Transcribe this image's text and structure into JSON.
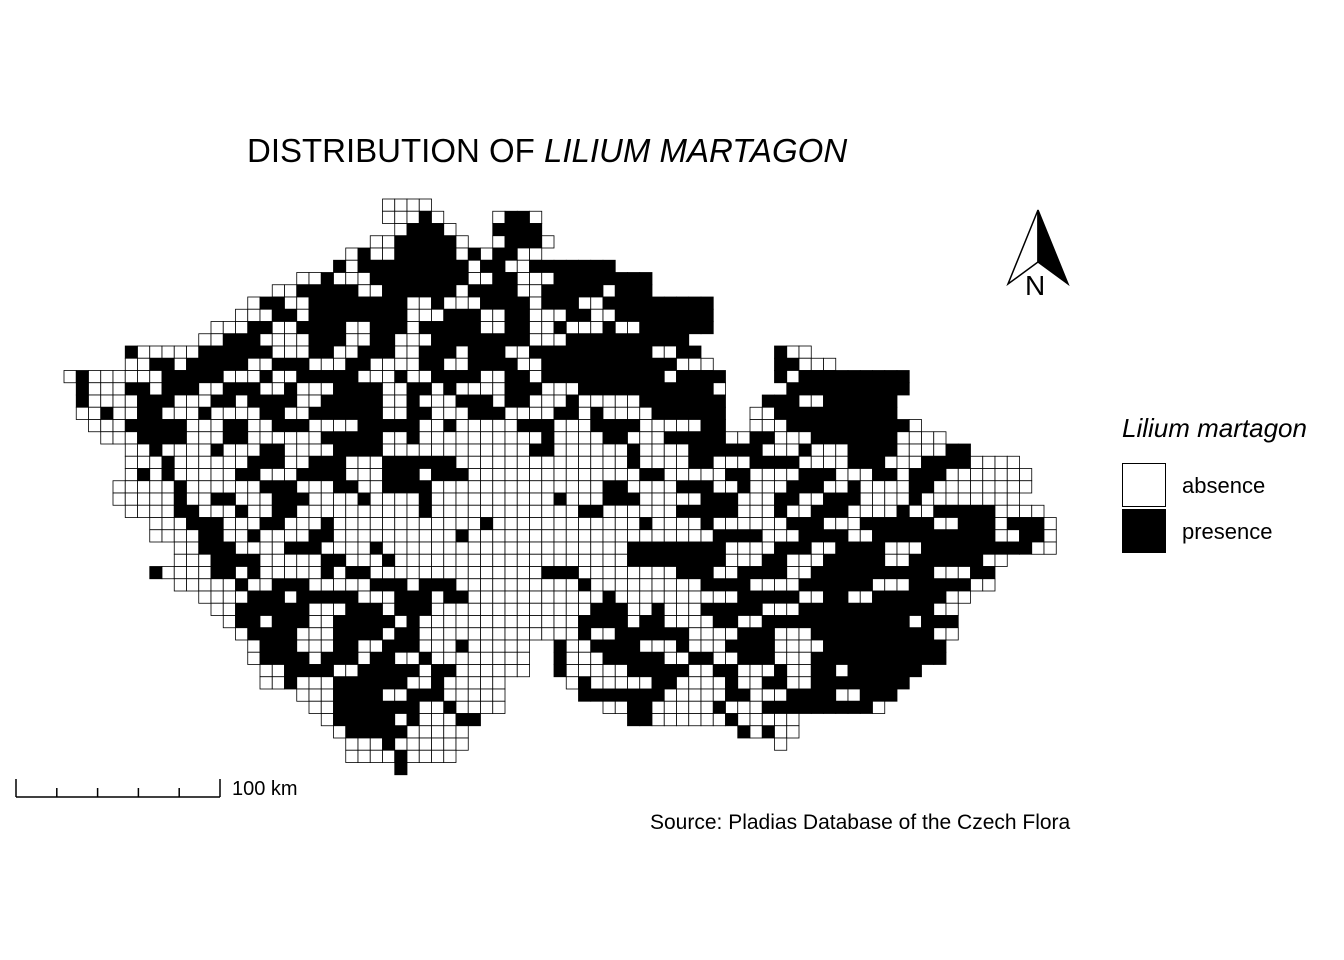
{
  "title": {
    "prefix": "DISTRIBUTION OF ",
    "species": "LILIUM MARTAGON"
  },
  "legend": {
    "title": "Lilium martagon",
    "items": [
      {
        "label": "absence",
        "color": "#ffffff"
      },
      {
        "label": "presence",
        "color": "#000000"
      }
    ]
  },
  "scale_bar": {
    "label": "100 km",
    "divisions": 5
  },
  "north_arrow": {
    "label": "N"
  },
  "source": "Source: Pladias Database of the Czech Flora",
  "colors": {
    "presence": "#000000",
    "absence": "#ffffff",
    "grid": "#000000"
  },
  "grid_encoding": "run-length per row: '.' outside, 'o' absence, 'x' presence",
  "grid_rows": [
    "26. 4o",
    "26. 3o 1x 1o 4. 1o 2x 1o",
    "27. 1o 3x 1o 3. 4x",
    "25. 2o 5x 1o 2. 1o 3x 1o",
    "23. 1o 1x 2o 5x 1o 1x 1o 2x 1o 1o",
    "22. 1x 1o 1x 2x 6x 1o 2x 1o 1o 3x 4x",
    "19. 2o 1x 3o 8x 2o 2x 1o 2o 4x 4x",
    "17. 2o 5x 2o 6x 1o 4x 2o 5x 1o 3x",
    "15. 1o 2x 2o 8x 2o 1x 3o 4x 1o 3x 2o 4x 5x",
    "14. 3o 2x 1o 8x 3o 3x 2o 2x 3o 2x 2o 8x",
    "12. 3o 2x 2o 4x 2o 3x 1o 5x 2o 2x 2o 1x 3o 1x 2o 6x",
    "11. 2o 3x 4o 3x 2o 2x 3o 8x 3o 3x 7x",
    "5. 1x 5o 2x 4x 3o 2x 2o 3x 2o 3x 1o 3x 2o 10x 2o 2x 6. 1x 2o",
    "5. 2o 2x 1o 5x 2o 3x 3o 2x 4o 2x 2o 4x 2o 8x 3x 3o 5. 2x 3o",
    "1o 1x 4o 2o 1x 4x 3o 1x 2o 5x 3o 1x 2o 4x 2o 2x 1o 10x 1o 4x 4. 1x 1o 9x",
    "1. 1x 3o 2x 1o 3x 2o 3x 2o 1x 3o 4x 2o 2x 1o 1x 4o 3x 3o 8x 3x 1o 5. 10x",
    "1. 1x 4o 3x 3o 2x 1o 4x 2o 5x 2o 1x 3o 3x 1o 2x 3o 1x 5o 3x 4x 3. 3x 2o 1x 5x",
    "1. 2o 1x 2o 2x 3o 1x 4o 2x 2o 6x 2o 2x 3o 3x 4o 2x 1o 1x 4o 6x 2. 2o 10x",
    "2. 3o 5x 3o 2x 2o 3x 4o 5x 2o 1x 5o 3x 3o 4x 5o 2x 2. 3o 10x 1o",
    "3. 3o 4x 3o 2x 6o 5x 2o 1x 10o 1x 4o 2x 3o 5x 2o 2x 3o 7x 1o 3o",
    "5. 2o 1x 4o 1x 3o 2x 4o 4x 12o 2x 6o 1x 4o 6x 3o 1x 3o 4x 4o 2x",
    "5. 3o 1x 6o 3x 2o 3x 3o 6x 14o 1x 4o 2x 3o 4x 4o 3x 3o 4x 4o",
    "5. 1o 1x 1o 1x 5o 2x 3o 4x 3o 3x 1o 3x 14o 2x 5o 2x 4o 3x 3o 2x 1o 3x 3o 4o",
    "4. 5o 1x 6o 3x 3o 2x 2o 4x 14o 2x 4o 3x 2o 1x 3o 3x 2o 1x 4o 2x 3o 5o",
    "4. 5o 1x 2o 2x 3o 3x 4o 1x 4o 1x 10o 1x 3o 3x 5o 3x 3o 2x 2o 3x 4o 1x 3o 5o",
    "5. 4o 2x 3o 1x 2o 2x 10o 1x 12o 2x 6o 5x 3o 1x 2o 3x 4o 1x 2o 5x 4o",
    "7. 3o 3x 3o 2x 3o 1x 12o 1x 12o 1x 4o 1x 6o 3x 3o 6x 2o 3x 1o 3x 1o",
    "7. 4o 2x 2o 1x 4o 2x 10o 1x 20o 4x 3o 4x 2o 10x 2o 2x 1o",
    "9. 2o 3x 4o 3x 4o 1x 20o 8x 4o 3x 2o 4x 3o 9x 2o",
    "9. 3o 4x 5o 2x 3o 1x 19o 8x 3o 2x 3o 5x 2o 6x 2o",
    "7. 1x 4o 2x 1o 1x 5o 1x 1o 2x 14o 3x 8o 3x 2o 4x 2o 10x 3o 2x",
    "9. 5o 1x 2o 3x 5o 3x 1o 3x 10o 1x 9o 4x 4o 6x 3o 5x 2o",
    "11. 4o 3x 1o 5x 3o 3x 1o 2x 11o 1x 10o 5x 2o 2x 2o 6x 2o",
    "12. 2o 6x 3o 3x 1o 3x 13o 3x 2o 1x 3o 5x 3o 11x 2o",
    "13. 1o 2x 1o 3x 2o 5x 1o 1x 13o 4x 1o 2x 4o 2x 2o 12x 1o 3x",
    "14. 1o 4x 3o 4x 1o 2x 13o 1x 2o 6x 4o 3x 3o 10x 2o",
    "15. 1o 3x 3o 2x 2o 3x 1o 2o 1x 5o 2. 1x 2o 4x 3o 1x 3o 4x 4o 10x",
    "15. 1o 4x 1o 3x 1o 2x 2o 1x 8o 2. 1x 3o 5x 2o 2x 2o 3x 3o 1x 10x",
    "16. 2o 4x 2o 5x 1o 2x 6o 2. 1x 5o 5x 2o 2x 3o 1x 2o 2x 1o 6x",
    "16. 2o 1x 3o 6x 2o 1x 5o 5. 1o 1x 5o 2x 4o 1x 2o 2x 2o 3x 5x",
    "19. 3o 4x 2o 3x 5o 6. 7x 5o 2x 3o 4x 2o 3x",
    "20. 2o 7x 2o 1x 4o 8. 2o 2x 5o 1x 3o 8x 1x 1o",
    "21. 1o 2x 3x 1o 1x 1o 2o 2x 12. 2x 4o 2o 1x 3o 2o",
    "22. 1o 5x 5o 22. 1x 1o 1x 2o",
    "23. 3o 1x 6o 25. 1o",
    "23. 4o 1x 4o",
    "27. 1x"
  ]
}
